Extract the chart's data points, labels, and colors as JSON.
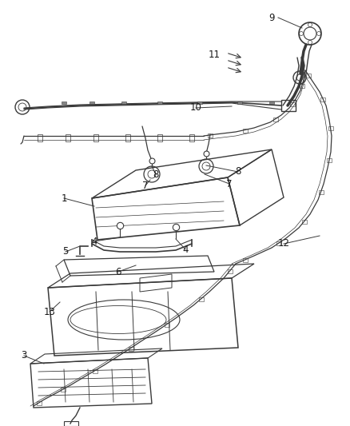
{
  "bg_color": "#ffffff",
  "line_color": "#3a3a3a",
  "label_color": "#1a1a1a",
  "figsize": [
    4.38,
    5.33
  ],
  "dpi": 100,
  "labels": [
    [
      "9",
      340,
      22
    ],
    [
      "11",
      268,
      68
    ],
    [
      "10",
      245,
      135
    ],
    [
      "8",
      195,
      218
    ],
    [
      "8",
      298,
      215
    ],
    [
      "7",
      182,
      232
    ],
    [
      "7",
      287,
      230
    ],
    [
      "1",
      80,
      248
    ],
    [
      "4",
      118,
      302
    ],
    [
      "4",
      232,
      312
    ],
    [
      "5",
      82,
      315
    ],
    [
      "6",
      148,
      340
    ],
    [
      "12",
      355,
      305
    ],
    [
      "13",
      62,
      390
    ],
    [
      "3",
      30,
      445
    ]
  ]
}
